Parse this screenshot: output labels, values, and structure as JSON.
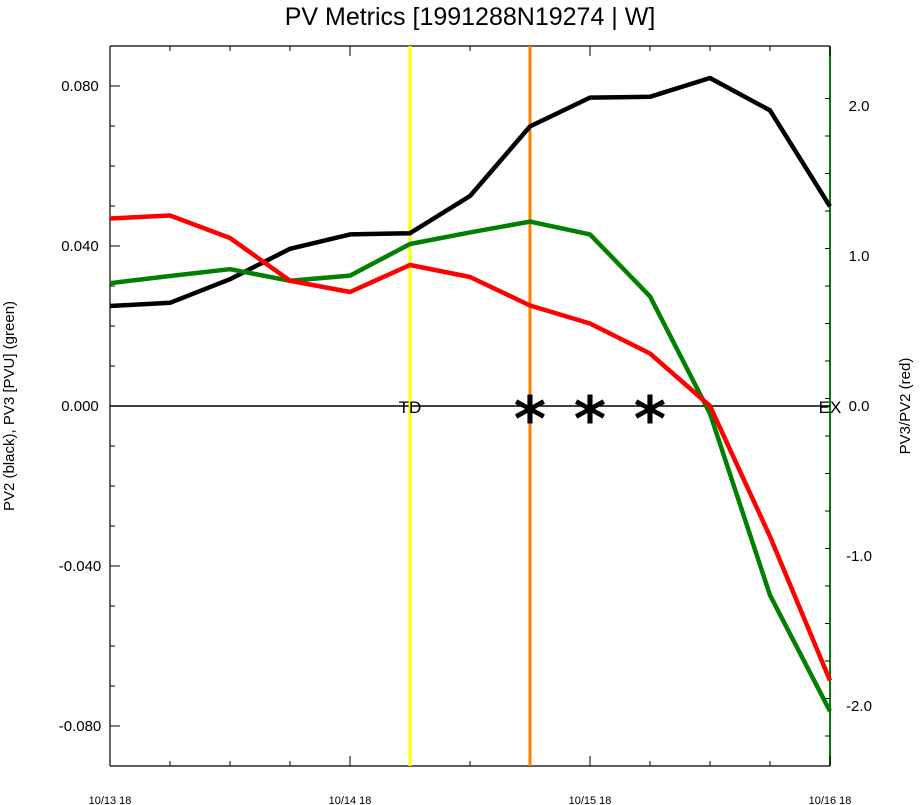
{
  "chart_data": {
    "type": "line",
    "title": "PV Metrics [1991288N19274 | W]",
    "ylabel_left": "PV2 (black), PV3 [PVU] (green)",
    "ylabel_right": "PV3/PV2 (red)",
    "x_ticks": [
      "10/13 18",
      "10/14 18",
      "10/15 18",
      "10/16 18"
    ],
    "x_range_hours": [
      0,
      72
    ],
    "ylim_left": [
      -0.09,
      0.09
    ],
    "ylim_right": [
      -2.4,
      2.4
    ],
    "yticks_left": [
      "0.080",
      "0.040",
      "0.000",
      "-0.040",
      "-0.080"
    ],
    "yticks_left_values": [
      0.08,
      0.04,
      0.0,
      -0.04,
      -0.08
    ],
    "yticks_right": [
      "2.0",
      "1.0",
      "0.0",
      "-1.0",
      "-2.0"
    ],
    "yticks_right_values": [
      2.0,
      1.0,
      0.0,
      -1.0,
      -2.0
    ],
    "x": [
      0,
      6,
      12,
      18,
      24,
      30,
      36,
      42,
      48,
      54,
      60,
      66,
      72
    ],
    "series": [
      {
        "color": "#000000",
        "axis": "left",
        "values": [
          0.025,
          0.0258,
          0.0317,
          0.0393,
          0.0429,
          0.0432,
          0.0525,
          0.0699,
          0.0771,
          0.0773,
          0.082,
          0.0739,
          0.0499
        ]
      },
      {
        "color": "#008000",
        "axis": "left",
        "values": [
          0.0307,
          0.0325,
          0.0342,
          0.0313,
          0.0326,
          0.0405,
          0.0434,
          0.0461,
          0.0429,
          0.0274,
          -0.0019,
          -0.0473,
          -0.0763
        ]
      },
      {
        "color": "#ff0000",
        "axis": "right",
        "values": [
          1.25,
          1.27,
          1.12,
          0.835,
          0.76,
          0.94,
          0.86,
          0.67,
          0.55,
          0.35,
          0.0,
          -0.87,
          -1.83
        ]
      }
    ],
    "vertical_lines": [
      {
        "x": 30,
        "color": "#ffff00"
      },
      {
        "x": 42,
        "color": "#ff8000"
      }
    ],
    "right_axis_line_color": "#008000",
    "annotations": [
      {
        "text": "TD",
        "x": 30
      },
      {
        "text": "EX",
        "x": 72
      }
    ],
    "star_marks": [
      {
        "text": "*",
        "x": 42
      },
      {
        "text": "*",
        "x": 48
      },
      {
        "text": "*",
        "x": 54
      }
    ]
  }
}
